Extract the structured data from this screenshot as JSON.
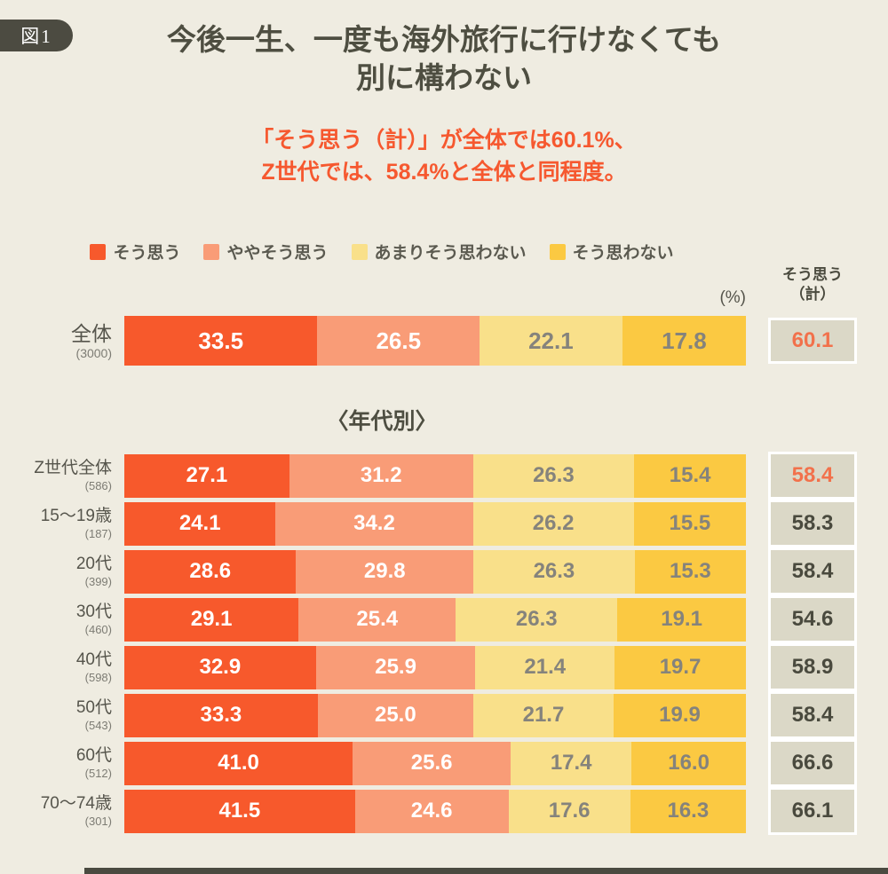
{
  "figure_badge": "図1",
  "title": {
    "line1": "今後一生、一度も海外旅行に行けなくても",
    "line2": "別に構わない"
  },
  "subtitle": {
    "line1": "「そう思う（計）」が全体では60.1%、",
    "line2": "Z世代では、58.4%と全体と同程度。"
  },
  "unit_label": "(%)",
  "total_header": {
    "line1": "そう思う",
    "line2": "（計）"
  },
  "section_header": "〈年代別〉",
  "legend": [
    {
      "label": "そう思う",
      "color": "#F7592C"
    },
    {
      "label": "ややそう思う",
      "color": "#F99C77"
    },
    {
      "label": "あまりそう思わない",
      "color": "#F9E08A"
    },
    {
      "label": "そう思わない",
      "color": "#FBC942"
    }
  ],
  "colors": {
    "background": "#EFECE1",
    "badge_bg": "#4C4B41",
    "title_text": "#4E4E41",
    "subtitle_text": "#F6582F",
    "segments": [
      "#F7592C",
      "#F99C77",
      "#F9E08A",
      "#FBC942"
    ],
    "segment_text": [
      "#FFFFFF",
      "#FFFFFF",
      "#85837C",
      "#85837C"
    ],
    "total_box_bg": "#DBD8C7",
    "total_text": "#4A4A3E",
    "total_highlight": "#F2714B",
    "footer": "#4A4A40"
  },
  "chart_data": {
    "type": "bar",
    "stacked": true,
    "orientation": "horizontal",
    "unit": "%",
    "series": [
      "そう思う",
      "ややそう思う",
      "あまりそう思わない",
      "そう思わない"
    ],
    "series_names_en": [
      "agree",
      "somewhat-agree",
      "somewhat-disagree",
      "disagree"
    ],
    "total_column_label": "そう思う（計）",
    "rows": [
      {
        "label": "全体",
        "n": "(3000)",
        "group": "overall",
        "values": [
          33.5,
          26.5,
          22.1,
          17.8
        ],
        "total": "60.1",
        "highlight": true
      },
      {
        "label": "Z世代全体",
        "n": "(586)",
        "group": "age",
        "values": [
          27.1,
          31.2,
          26.3,
          15.4
        ],
        "total": "58.4",
        "highlight": true
      },
      {
        "label": "15〜19歳",
        "n": "(187)",
        "group": "age",
        "values": [
          24.1,
          34.2,
          26.2,
          15.5
        ],
        "total": "58.3",
        "highlight": false
      },
      {
        "label": "20代",
        "n": "(399)",
        "group": "age",
        "values": [
          28.6,
          29.8,
          26.3,
          15.3
        ],
        "total": "58.4",
        "highlight": false
      },
      {
        "label": "30代",
        "n": "(460)",
        "group": "age",
        "values": [
          29.1,
          25.4,
          26.3,
          19.1
        ],
        "total": "54.6",
        "highlight": false
      },
      {
        "label": "40代",
        "n": "(598)",
        "group": "age",
        "values": [
          32.9,
          25.9,
          21.4,
          19.7
        ],
        "total": "58.9",
        "highlight": false
      },
      {
        "label": "50代",
        "n": "(543)",
        "group": "age",
        "values": [
          33.3,
          25.0,
          21.7,
          19.9
        ],
        "total": "58.4",
        "highlight": false
      },
      {
        "label": "60代",
        "n": "(512)",
        "group": "age",
        "values": [
          41.0,
          25.6,
          17.4,
          16.0
        ],
        "total": "66.6",
        "highlight": false
      },
      {
        "label": "70〜74歳",
        "n": "(301)",
        "group": "age",
        "values": [
          41.5,
          24.6,
          17.6,
          16.3
        ],
        "total": "66.1",
        "highlight": false
      }
    ]
  }
}
